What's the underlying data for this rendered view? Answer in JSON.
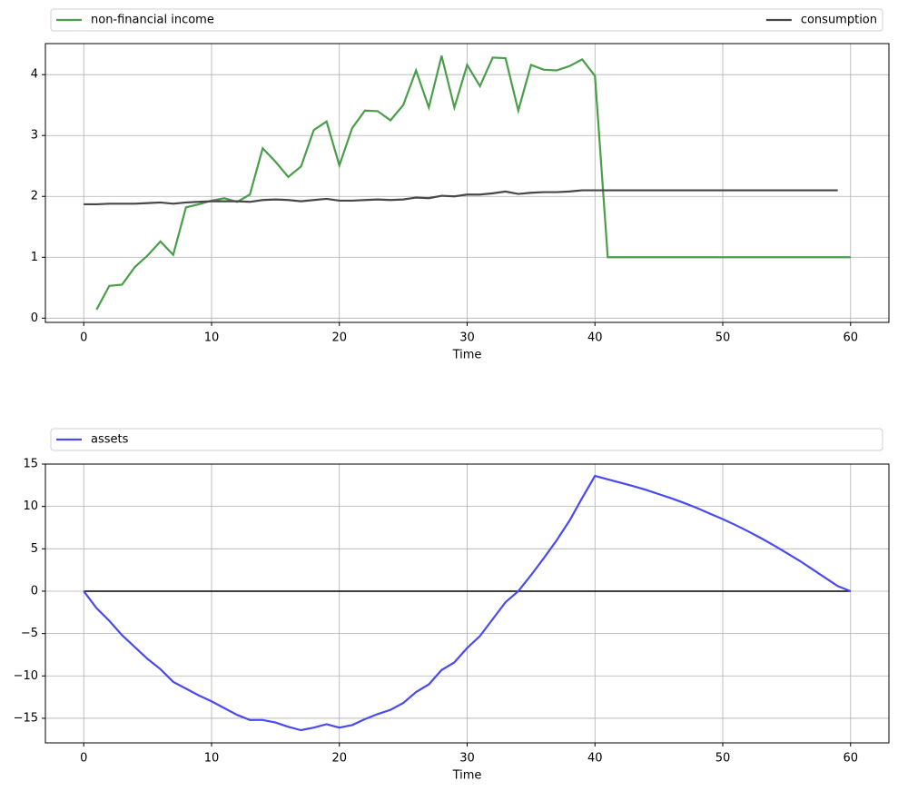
{
  "chart_data": [
    {
      "type": "line",
      "xlabel": "Time",
      "x": [
        0,
        1,
        2,
        3,
        4,
        5,
        6,
        7,
        8,
        9,
        10,
        11,
        12,
        13,
        14,
        15,
        16,
        17,
        18,
        19,
        20,
        21,
        22,
        23,
        24,
        25,
        26,
        27,
        28,
        29,
        30,
        31,
        32,
        33,
        34,
        35,
        36,
        37,
        38,
        39,
        40,
        41,
        42,
        43,
        44,
        45,
        46,
        47,
        48,
        49,
        50,
        51,
        52,
        53,
        54,
        55,
        56,
        57,
        58,
        59,
        60
      ],
      "xlim": [
        -3,
        63
      ],
      "xticks": [
        0,
        10,
        20,
        30,
        40,
        50,
        60
      ],
      "ylim": [
        -0.07,
        4.51
      ],
      "yticks": [
        0,
        1,
        2,
        3,
        4
      ],
      "grid": true,
      "legend": "top-expand",
      "series": [
        {
          "name": "non-financial income",
          "color": "#4a9e4a",
          "values": [
            null,
            0.14,
            0.53,
            0.55,
            0.84,
            1.03,
            1.26,
            1.04,
            1.82,
            1.87,
            1.93,
            1.97,
            1.91,
            2.03,
            2.79,
            2.57,
            2.32,
            2.49,
            3.09,
            3.23,
            2.51,
            3.12,
            3.41,
            3.4,
            3.25,
            3.5,
            4.07,
            3.46,
            4.31,
            3.46,
            4.16,
            3.81,
            4.28,
            4.27,
            3.41,
            4.16,
            4.08,
            4.07,
            4.14,
            4.25,
            3.98,
            1,
            1,
            1,
            1,
            1,
            1,
            1,
            1,
            1,
            1,
            1,
            1,
            1,
            1,
            1,
            1,
            1,
            1,
            1,
            1
          ]
        },
        {
          "name": "consumption",
          "color": "#474747",
          "values": [
            1.87,
            1.87,
            1.88,
            1.88,
            1.88,
            1.89,
            1.9,
            1.88,
            1.9,
            1.91,
            1.92,
            1.92,
            1.92,
            1.91,
            1.94,
            1.95,
            1.94,
            1.92,
            1.94,
            1.96,
            1.93,
            1.93,
            1.94,
            1.95,
            1.94,
            1.95,
            1.98,
            1.97,
            2.01,
            2.0,
            2.03,
            2.03,
            2.05,
            2.08,
            2.04,
            2.06,
            2.07,
            2.07,
            2.08,
            2.1,
            2.1,
            2.1,
            2.1,
            2.1,
            2.1,
            2.1,
            2.1,
            2.1,
            2.1,
            2.1,
            2.1,
            2.1,
            2.1,
            2.1,
            2.1,
            2.1,
            2.1,
            2.1,
            2.1,
            2.1,
            null
          ]
        }
      ]
    },
    {
      "type": "line",
      "xlabel": "Time",
      "x": [
        0,
        1,
        2,
        3,
        4,
        5,
        6,
        7,
        8,
        9,
        10,
        11,
        12,
        13,
        14,
        15,
        16,
        17,
        18,
        19,
        20,
        21,
        22,
        23,
        24,
        25,
        26,
        27,
        28,
        29,
        30,
        31,
        32,
        33,
        34,
        35,
        36,
        37,
        38,
        39,
        40,
        41,
        42,
        43,
        44,
        45,
        46,
        47,
        48,
        49,
        50,
        51,
        52,
        53,
        54,
        55,
        56,
        57,
        58,
        59,
        60
      ],
      "xlim": [
        -3,
        63
      ],
      "xticks": [
        0,
        10,
        20,
        30,
        40,
        50,
        60
      ],
      "ylim": [
        -17.9,
        15.0
      ],
      "yticks": [
        {
          "value": -15,
          "label": "−15"
        },
        {
          "value": -10,
          "label": "−10"
        },
        {
          "value": -5,
          "label": "−5"
        },
        0,
        5,
        10,
        15
      ],
      "grid": true,
      "legend": "top-expand",
      "hline": {
        "value": 0,
        "color": "#000000"
      },
      "series": [
        {
          "name": "assets",
          "color": "#4a4aef",
          "values": [
            0,
            -2.0,
            -3.5,
            -5.2,
            -6.6,
            -8.0,
            -9.2,
            -10.7,
            -11.5,
            -12.3,
            -13.0,
            -13.8,
            -14.6,
            -15.2,
            -15.2,
            -15.5,
            -16.0,
            -16.4,
            -16.1,
            -15.7,
            -16.1,
            -15.8,
            -15.1,
            -14.5,
            -14.0,
            -13.2,
            -11.9,
            -11.0,
            -9.3,
            -8.4,
            -6.7,
            -5.3,
            -3.3,
            -1.3,
            0.0,
            1.9,
            3.9,
            6.0,
            8.3,
            11.0,
            13.6,
            13.2,
            12.8,
            12.4,
            11.95,
            11.45,
            10.95,
            10.4,
            9.8,
            9.15,
            8.5,
            7.8,
            7.05,
            6.25,
            5.4,
            4.5,
            3.6,
            2.6,
            1.6,
            0.6,
            0
          ]
        }
      ]
    }
  ]
}
